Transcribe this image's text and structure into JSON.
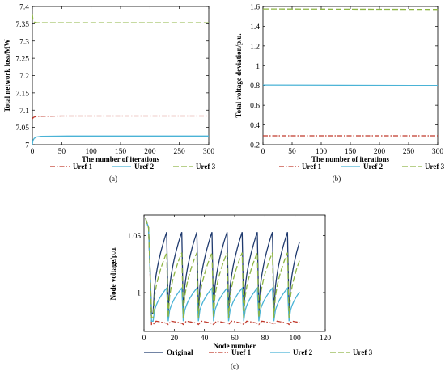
{
  "chart_data": [
    {
      "panel": "(a)",
      "type": "line",
      "xlabel": "The number of iterations",
      "ylabel": "Total network loss/MW",
      "xlim": [
        0,
        300
      ],
      "ylim": [
        7.0,
        7.4
      ],
      "xticks": [
        "0",
        "50",
        "100",
        "150",
        "200",
        "250",
        "300"
      ],
      "yticks": [
        "7",
        "7.05",
        "7.1",
        "7.15",
        "7.2",
        "7.25",
        "7.3",
        "7.35",
        "7.4"
      ],
      "legend": "bottom",
      "series": [
        {
          "name": "Uref 1",
          "color": "#c0392b",
          "dash": "dashdot",
          "points": [
            [
              0,
              7.075
            ],
            [
              2,
              7.079
            ],
            [
              5,
              7.081
            ],
            [
              10,
              7.082
            ],
            [
              50,
              7.083
            ],
            [
              300,
              7.083
            ]
          ]
        },
        {
          "name": "Uref 2",
          "color": "#4ab3d6",
          "dash": "solid",
          "points": [
            [
              0,
              7.0
            ],
            [
              1,
              7.012
            ],
            [
              3,
              7.018
            ],
            [
              6,
              7.022
            ],
            [
              15,
              7.024
            ],
            [
              60,
              7.025
            ],
            [
              300,
              7.025
            ]
          ]
        },
        {
          "name": "Uref 3",
          "color": "#8db543",
          "dash": "dash",
          "points": [
            [
              0,
              7.378
            ],
            [
              1,
              7.362
            ],
            [
              3,
              7.355
            ],
            [
              8,
              7.353
            ],
            [
              300,
              7.353
            ]
          ]
        }
      ]
    },
    {
      "panel": "(b)",
      "type": "line",
      "xlabel": "The number of iterations",
      "ylabel": "Total voltage deviation/p.u.",
      "xlim": [
        0,
        300
      ],
      "ylim": [
        0.2,
        1.6
      ],
      "xticks": [
        "0",
        "50",
        "100",
        "150",
        "200",
        "250",
        "300"
      ],
      "yticks": [
        "0.2",
        "0.4",
        "0.6",
        "0.8",
        "1",
        "1.2",
        "1.4",
        "1.6"
      ],
      "legend": "bottom",
      "series": [
        {
          "name": "Uref 1",
          "color": "#c0392b",
          "dash": "dashdot",
          "points": [
            [
              0,
              0.29
            ],
            [
              300,
              0.29
            ]
          ]
        },
        {
          "name": "Uref 2",
          "color": "#4ab3d6",
          "dash": "solid",
          "points": [
            [
              0,
              0.805
            ],
            [
              300,
              0.8
            ]
          ]
        },
        {
          "name": "Uref 3",
          "color": "#8db543",
          "dash": "dash",
          "points": [
            [
              0,
              1.575
            ],
            [
              300,
              1.57
            ]
          ]
        }
      ]
    },
    {
      "panel": "(c)",
      "type": "line",
      "xlabel": "Node number",
      "ylabel": "Node voltage/p.u.",
      "xlim": [
        0,
        120
      ],
      "ylim": [
        0.966,
        1.068
      ],
      "xticks": [
        "0",
        "20",
        "40",
        "60",
        "80",
        "100",
        "120"
      ],
      "yticks": [
        "1",
        "1.05"
      ],
      "ytick_values": [
        1.0,
        1.05
      ],
      "legend": "bottom",
      "series": [
        {
          "name": "Original",
          "color": "#1f3a6e",
          "dash": "solid",
          "peak": 1.053,
          "dip": 0.982
        },
        {
          "name": "Uref 1",
          "color": "#c0392b",
          "dash": "dashdot",
          "peak": 0.976,
          "dip": 0.972
        },
        {
          "name": "Uref 2",
          "color": "#4ab3d6",
          "dash": "solid",
          "peak": 1.004,
          "dip": 0.975
        },
        {
          "name": "Uref 3",
          "color": "#8db543",
          "dash": "dash",
          "peak": 1.035,
          "dip": 0.978
        }
      ]
    }
  ],
  "captions": [
    "(a)",
    "(b)",
    "(c)"
  ]
}
